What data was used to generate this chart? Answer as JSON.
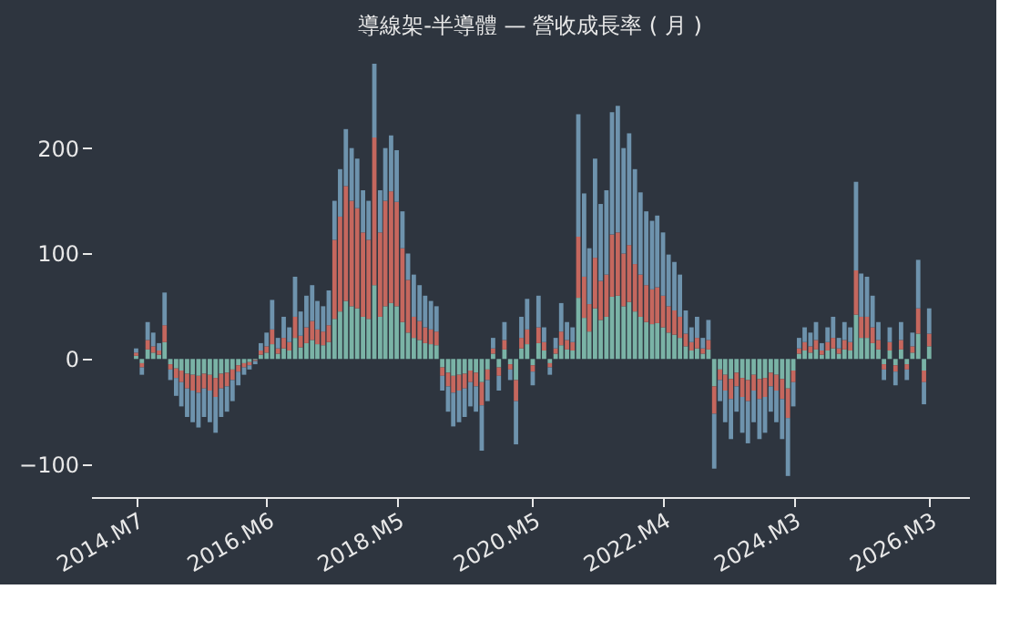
{
  "chart_data": {
    "type": "bar",
    "stacked": true,
    "title": "導線架-半導體 — 營收成長率 ( 月 )",
    "x": [
      "2014-07",
      "2014-08",
      "2014-09",
      "2014-10",
      "2014-11",
      "2014-12",
      "2015-01",
      "2015-02",
      "2015-03",
      "2015-04",
      "2015-05",
      "2015-06",
      "2015-07",
      "2015-08",
      "2015-09",
      "2015-10",
      "2015-11",
      "2015-12",
      "2016-01",
      "2016-02",
      "2016-03",
      "2016-04",
      "2016-05",
      "2016-06",
      "2016-07",
      "2016-08",
      "2016-09",
      "2016-10",
      "2016-11",
      "2016-12",
      "2017-01",
      "2017-02",
      "2017-03",
      "2017-04",
      "2017-05",
      "2017-06",
      "2017-07",
      "2017-08",
      "2017-09",
      "2017-10",
      "2017-11",
      "2017-12",
      "2018-01",
      "2018-02",
      "2018-03",
      "2018-04",
      "2018-05",
      "2018-06",
      "2018-07",
      "2018-08",
      "2018-09",
      "2018-10",
      "2018-11",
      "2018-12",
      "2019-01",
      "2019-02",
      "2019-03",
      "2019-04",
      "2019-05",
      "2019-06",
      "2019-07",
      "2019-08",
      "2019-09",
      "2019-10",
      "2019-11",
      "2019-12",
      "2020-01",
      "2020-02",
      "2020-03",
      "2020-04",
      "2020-05",
      "2020-06",
      "2020-07",
      "2020-08",
      "2020-09",
      "2020-10",
      "2020-11",
      "2020-12",
      "2021-01",
      "2021-02",
      "2021-03",
      "2021-04",
      "2021-05",
      "2021-06",
      "2021-07",
      "2021-08",
      "2021-09",
      "2021-10",
      "2021-11",
      "2021-12",
      "2022-01",
      "2022-02",
      "2022-03",
      "2022-04",
      "2022-05",
      "2022-06",
      "2022-07",
      "2022-08",
      "2022-09",
      "2022-10",
      "2022-11",
      "2022-12",
      "2023-01",
      "2023-02",
      "2023-03",
      "2023-04",
      "2023-05",
      "2023-06",
      "2023-07",
      "2023-08",
      "2023-09",
      "2023-10",
      "2023-11",
      "2023-12",
      "2024-01",
      "2024-02",
      "2024-03",
      "2024-04",
      "2024-05",
      "2024-06",
      "2024-07",
      "2024-08",
      "2024-09",
      "2024-10",
      "2024-11",
      "2024-12",
      "2025-01",
      "2025-02",
      "2025-03",
      "2025-04",
      "2025-05",
      "2025-06",
      "2025-07",
      "2025-08",
      "2025-09",
      "2025-10",
      "2025-11",
      "2025-12",
      "2026-01",
      "2026-02",
      "2026-03"
    ],
    "series": [
      {
        "color": "#7ab3a6",
        "values": [
          3,
          -4,
          9,
          6,
          4,
          16,
          -5,
          -9,
          -11,
          -14,
          -15,
          -16,
          -14,
          -15,
          -18,
          -14,
          -13,
          -10,
          -6,
          -4,
          -3,
          -1,
          4,
          6,
          14,
          5,
          10,
          8,
          20,
          11,
          15,
          18,
          14,
          13,
          16,
          38,
          45,
          55,
          50,
          48,
          40,
          38,
          70,
          40,
          50,
          53,
          50,
          35,
          25,
          20,
          18,
          15,
          14,
          13,
          -8,
          -13,
          -16,
          -15,
          -14,
          -11,
          -13,
          -22,
          -10,
          5,
          -8,
          9,
          -5,
          -20,
          10,
          14,
          -6,
          15,
          8,
          -4,
          5,
          13,
          9,
          8,
          58,
          39,
          26,
          48,
          37,
          40,
          59,
          60,
          50,
          54,
          45,
          40,
          35,
          33,
          34,
          30,
          25,
          23,
          20,
          12,
          8,
          10,
          5,
          9,
          -26,
          -10,
          -15,
          -19,
          -13,
          -18,
          -20,
          -15,
          -19,
          -18,
          -13,
          -15,
          -19,
          -28,
          -11,
          5,
          8,
          6,
          9,
          4,
          8,
          10,
          5,
          9,
          8,
          42,
          20,
          20,
          15,
          9,
          -5,
          8,
          -6,
          9,
          -5,
          6,
          24,
          -11,
          12
        ]
      },
      {
        "color": "#c5675e",
        "values": [
          3,
          -4,
          9,
          6,
          4,
          16,
          -5,
          -9,
          -11,
          -14,
          -15,
          -16,
          -14,
          -15,
          -18,
          -14,
          -13,
          -10,
          -6,
          -4,
          -3,
          -1,
          4,
          6,
          14,
          5,
          10,
          8,
          20,
          11,
          15,
          18,
          14,
          13,
          16,
          75,
          90,
          109,
          100,
          95,
          80,
          75,
          140,
          80,
          100,
          106,
          99,
          70,
          50,
          20,
          18,
          15,
          14,
          13,
          -8,
          -13,
          -16,
          -15,
          -14,
          -11,
          -13,
          -22,
          -10,
          5,
          -8,
          9,
          -5,
          -20,
          10,
          14,
          -6,
          15,
          8,
          -4,
          5,
          13,
          9,
          8,
          58,
          39,
          26,
          48,
          37,
          40,
          59,
          60,
          50,
          54,
          45,
          40,
          35,
          33,
          34,
          30,
          25,
          23,
          20,
          12,
          8,
          10,
          5,
          9,
          -26,
          -10,
          -15,
          -19,
          -13,
          -18,
          -20,
          -15,
          -19,
          -18,
          -13,
          -15,
          -19,
          -28,
          -11,
          5,
          8,
          6,
          9,
          4,
          8,
          10,
          5,
          9,
          8,
          42,
          20,
          20,
          15,
          9,
          -5,
          8,
          -6,
          9,
          -5,
          6,
          24,
          -11,
          12
        ]
      },
      {
        "color": "#6e93ad",
        "values": [
          4,
          -7,
          17,
          13,
          7,
          31,
          -10,
          -17,
          -23,
          -27,
          -30,
          -33,
          -27,
          -30,
          -34,
          -27,
          -24,
          -20,
          -13,
          -7,
          -4,
          -3,
          7,
          13,
          28,
          10,
          20,
          14,
          38,
          23,
          30,
          34,
          27,
          24,
          33,
          37,
          45,
          54,
          50,
          47,
          40,
          37,
          70,
          40,
          50,
          53,
          49,
          35,
          25,
          40,
          34,
          30,
          27,
          24,
          -14,
          -24,
          -32,
          -30,
          -27,
          -23,
          -24,
          -43,
          -20,
          10,
          -14,
          17,
          -10,
          -41,
          20,
          29,
          -13,
          30,
          14,
          -7,
          10,
          27,
          17,
          14,
          116,
          79,
          53,
          94,
          73,
          80,
          116,
          120,
          100,
          106,
          90,
          78,
          70,
          65,
          68,
          60,
          49,
          46,
          40,
          22,
          14,
          20,
          10,
          19,
          -52,
          -20,
          -30,
          -38,
          -24,
          -34,
          -40,
          -30,
          -38,
          -34,
          -24,
          -30,
          -38,
          -55,
          -23,
          10,
          14,
          13,
          17,
          7,
          14,
          20,
          10,
          17,
          14,
          84,
          41,
          38,
          30,
          17,
          -10,
          14,
          -13,
          17,
          -10,
          13,
          46,
          -21,
          24
        ]
      }
    ],
    "xlim": [
      "2013-11",
      "2026-10"
    ],
    "xticks": [
      {
        "value": "2014-07",
        "label": "2014.M7"
      },
      {
        "value": "2016-06",
        "label": "2016.M6"
      },
      {
        "value": "2018-05",
        "label": "2018.M5"
      },
      {
        "value": "2020-05",
        "label": "2020.M5"
      },
      {
        "value": "2022-04",
        "label": "2022.M4"
      },
      {
        "value": "2024-03",
        "label": "2024.M3"
      },
      {
        "value": "2026-03",
        "label": "2026.M3"
      }
    ],
    "ylim": [
      -131,
      280
    ],
    "yticks": [
      -100,
      0,
      100,
      200
    ],
    "grid": false,
    "legend": false
  }
}
